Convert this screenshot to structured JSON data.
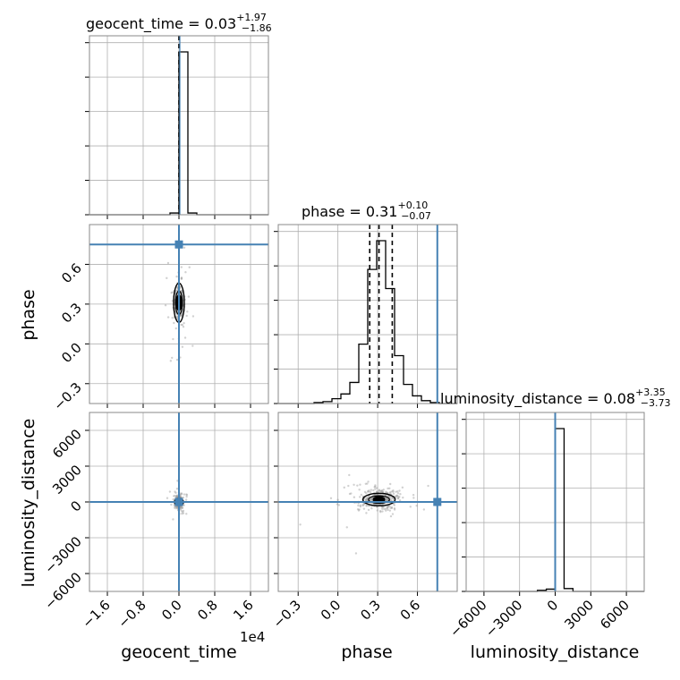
{
  "chart_data": {
    "type": "corner",
    "truth_color": "#4682b4",
    "parameters": [
      {
        "name": "geocent_time",
        "xlabel": "geocent_time",
        "offset_label": "1e4",
        "title_value": "0.03",
        "title_plus": "+1.97",
        "title_minus": "−1.86",
        "title_prefix": "geocent_time = ",
        "range": [
          -2.0,
          2.0
        ],
        "ticks": [
          -1.6,
          -0.8,
          0.0,
          0.8,
          1.6
        ],
        "tick_labels": [
          "−1.6",
          "−0.8",
          "0.0",
          "0.8",
          "1.6"
        ],
        "truth": 0.0,
        "quantiles": [
          0.0
        ],
        "hist_edges": [
          -2.0,
          -1.8,
          -1.6,
          -1.4,
          -1.2,
          -1.0,
          -0.8,
          -0.6,
          -0.4,
          -0.2,
          0.0,
          0.2,
          0.4,
          0.6,
          0.8,
          1.0,
          1.2,
          1.4,
          1.6,
          1.8,
          2.0
        ],
        "hist_counts": [
          0,
          0,
          0,
          0,
          0,
          0,
          0,
          0,
          0,
          3,
          283,
          3,
          0,
          0,
          0,
          0,
          0,
          0,
          0,
          0
        ]
      },
      {
        "name": "phase",
        "xlabel": "phase",
        "ylabel": "phase",
        "title_value": "0.31",
        "title_plus": "+0.10",
        "title_minus": "−0.07",
        "title_prefix": "phase = ",
        "range": [
          -0.45,
          0.9
        ],
        "ticks": [
          -0.3,
          0.0,
          0.3,
          0.6
        ],
        "tick_labels": [
          "−0.3",
          "0.0",
          "0.3",
          "0.6"
        ],
        "truth": 0.75,
        "quantiles": [
          0.24,
          0.31,
          0.41
        ],
        "hist_edges": [
          -0.45,
          -0.3825,
          -0.315,
          -0.2475,
          -0.18,
          -0.1125,
          -0.045,
          0.0225,
          0.09,
          0.1575,
          0.225,
          0.2925,
          0.36,
          0.4275,
          0.495,
          0.5625,
          0.63,
          0.6975,
          0.765,
          0.8325,
          0.9
        ],
        "hist_counts": [
          0,
          0,
          0,
          0,
          1,
          2,
          5,
          10,
          22,
          62,
          140,
          170,
          120,
          50,
          20,
          8,
          3,
          1,
          0,
          0
        ]
      },
      {
        "name": "luminosity_distance",
        "xlabel": "luminosity_distance",
        "ylabel": "luminosity_distance",
        "title_value": "0.08",
        "title_plus": "+3.35",
        "title_minus": "−3.73",
        "title_prefix": "luminosity_distance = ",
        "range": [
          -7500,
          7500
        ],
        "ticks": [
          -6000,
          -3000,
          0,
          3000,
          6000
        ],
        "tick_labels": [
          "−6000",
          "−3000",
          "0",
          "3000",
          "6000"
        ],
        "truth": 0,
        "quantiles": [
          0
        ],
        "hist_edges": [
          -7500,
          -6750,
          -6000,
          -5250,
          -4500,
          -3750,
          -3000,
          -2250,
          -1500,
          -750,
          0,
          750,
          1500,
          2250,
          3000,
          3750,
          4500,
          5250,
          6000,
          6750,
          7500
        ],
        "hist_counts": [
          0,
          0,
          0,
          0,
          0,
          0,
          0,
          0,
          2,
          4,
          285,
          5,
          0,
          0,
          0,
          0,
          0,
          0,
          0,
          0
        ]
      }
    ],
    "y_ticks_phase": [
      0.6,
      0.3,
      0.0,
      -0.3
    ],
    "y_tick_labels_phase": [
      "0.6",
      "0.3",
      "0.0",
      "−0.3"
    ],
    "y_ticks_lum": [
      6000,
      3000,
      0,
      -3000,
      -6000
    ],
    "y_tick_labels_lum": [
      "6000",
      "3000",
      "0",
      "−3000",
      "−6000"
    ],
    "grid": true
  }
}
